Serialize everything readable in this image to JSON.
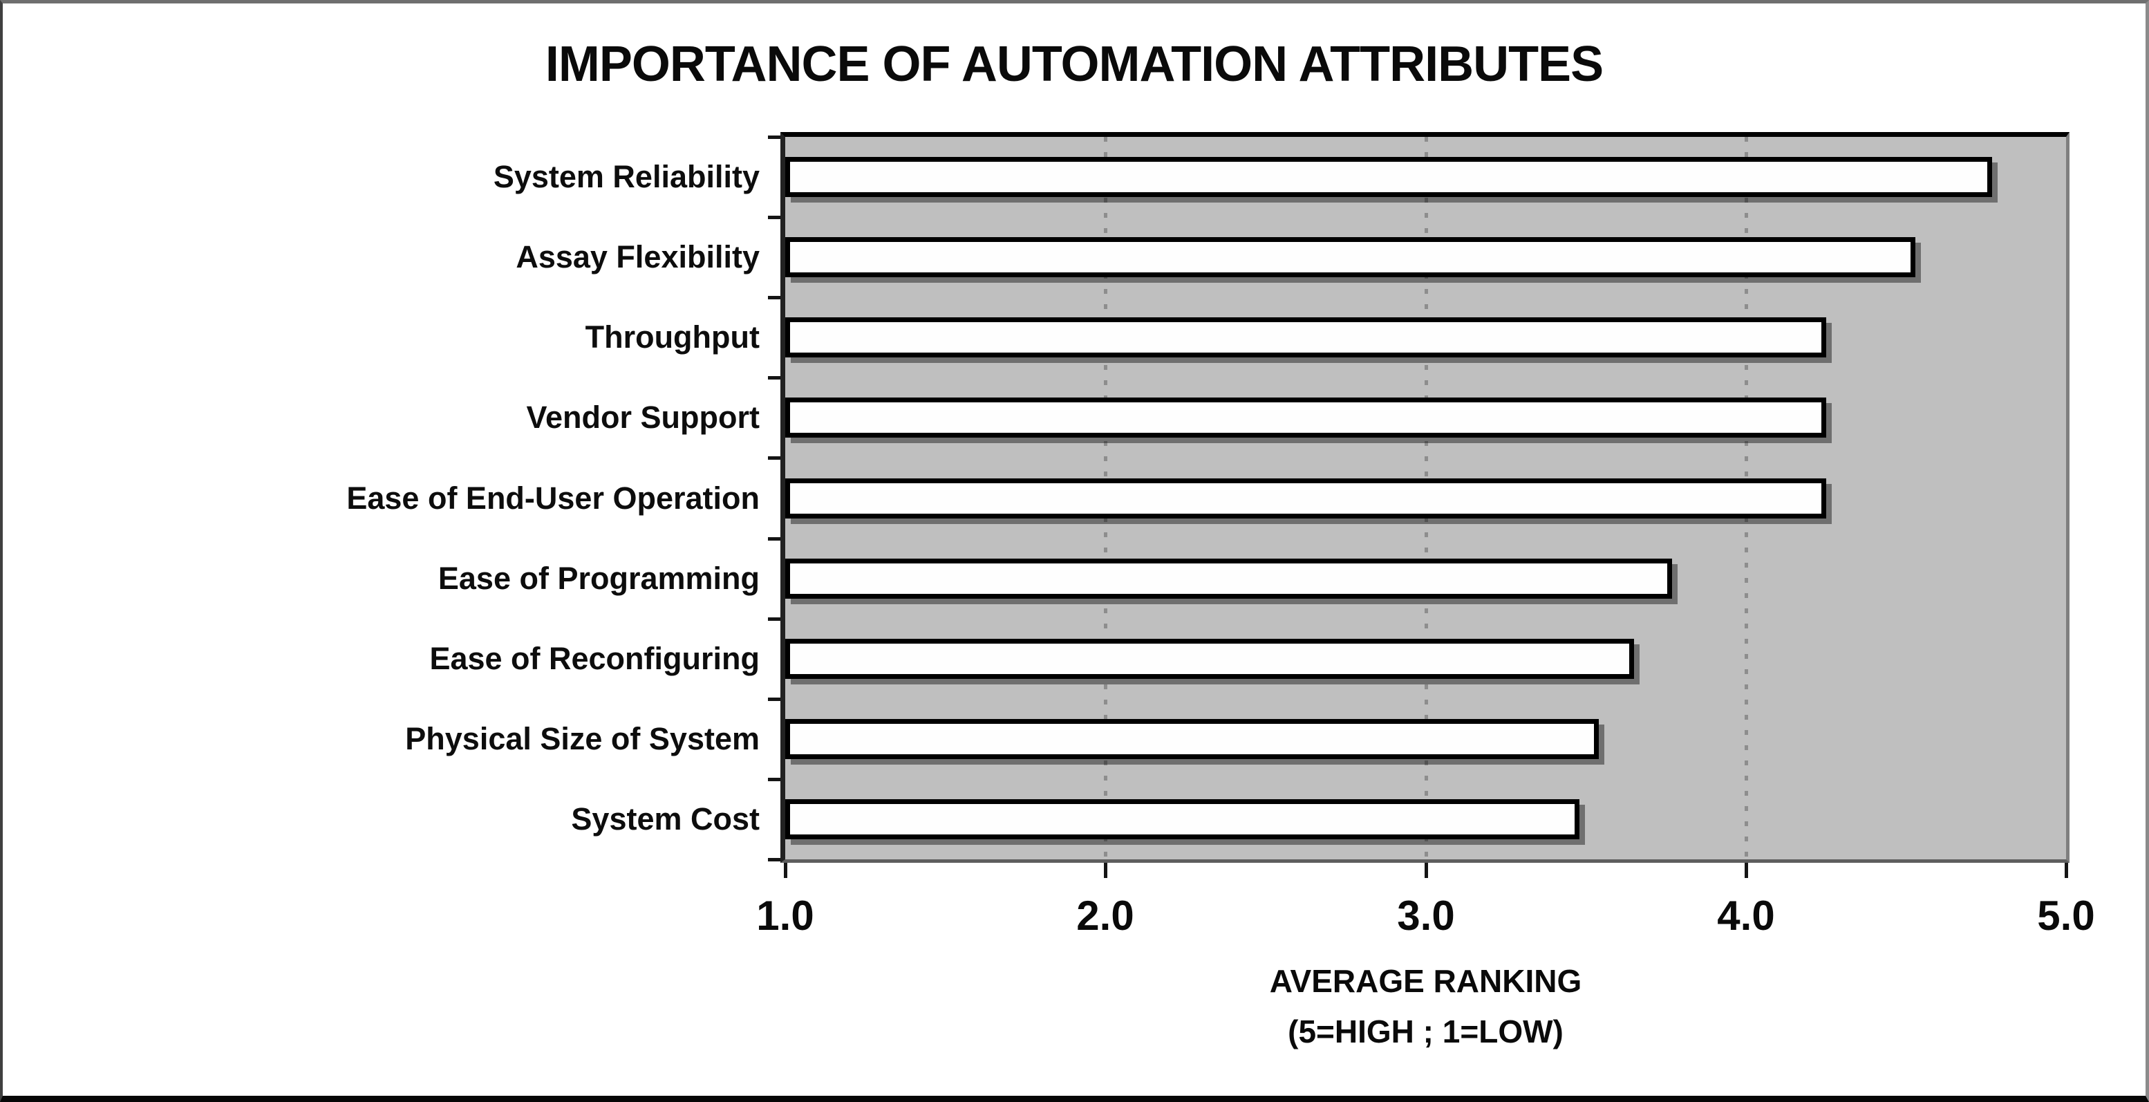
{
  "chart_data": {
    "type": "bar",
    "orientation": "horizontal",
    "title": "IMPORTANCE OF AUTOMATION ATTRIBUTES",
    "categories": [
      "System Reliability",
      "Assay Flexibility",
      "Throughput",
      "Vendor Support",
      "Ease of End-User Operation",
      "Ease of Programming",
      "Ease of Reconfiguring",
      "Physical Size of System",
      "System Cost"
    ],
    "values": [
      4.77,
      4.53,
      4.25,
      4.25,
      4.25,
      3.77,
      3.65,
      3.54,
      3.48
    ],
    "xlabel": "AVERAGE RANKING",
    "xlabel_note": "(5=HIGH ; 1=LOW)",
    "xlim": [
      1.0,
      5.0
    ],
    "xticks": [
      "1.0",
      "2.0",
      "3.0",
      "4.0",
      "5.0"
    ],
    "gridlines_at": [
      2.0,
      3.0,
      4.0
    ],
    "grid": "vertical-dashed",
    "legend": "none",
    "colors": {
      "plot_background": "#bfbfbf",
      "bar_fill": "#ffffff",
      "bar_border": "#000000",
      "gridline": "#8d8d8d",
      "text": "#0a0a0a"
    }
  }
}
